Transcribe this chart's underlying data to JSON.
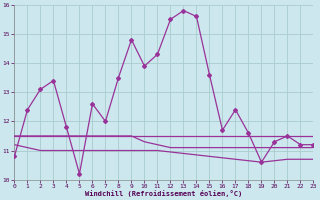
{
  "xlabel": "Windchill (Refroidissement éolien,°C)",
  "background_color": "#cce8ee",
  "grid_color": "#aacccc",
  "line_color": "#993399",
  "x": [
    0,
    1,
    2,
    3,
    4,
    5,
    6,
    7,
    8,
    9,
    10,
    11,
    12,
    13,
    14,
    15,
    16,
    17,
    18,
    19,
    20,
    21,
    22,
    23
  ],
  "y_main": [
    10.8,
    12.4,
    13.1,
    13.4,
    11.8,
    10.2,
    12.6,
    12.0,
    13.5,
    14.8,
    13.9,
    14.3,
    15.5,
    15.8,
    15.6,
    13.6,
    11.7,
    12.4,
    11.6,
    10.6,
    11.3,
    11.5,
    11.2,
    11.2
  ],
  "y_line2": [
    11.5,
    11.5,
    11.5,
    11.5,
    11.5,
    11.5,
    11.5,
    11.5,
    11.5,
    11.5,
    11.5,
    11.5,
    11.5,
    11.5,
    11.5,
    11.5,
    11.5,
    11.5,
    11.5,
    11.5,
    11.5,
    11.5,
    11.5,
    11.5
  ],
  "y_line3": [
    11.5,
    11.5,
    11.5,
    11.5,
    11.5,
    11.5,
    11.5,
    11.5,
    11.5,
    11.5,
    11.3,
    11.2,
    11.1,
    11.1,
    11.1,
    11.1,
    11.1,
    11.1,
    11.1,
    11.1,
    11.1,
    11.1,
    11.1,
    11.1
  ],
  "y_line4": [
    11.2,
    11.1,
    11.0,
    11.0,
    11.0,
    11.0,
    11.0,
    11.0,
    11.0,
    11.0,
    11.0,
    11.0,
    10.95,
    10.9,
    10.85,
    10.8,
    10.75,
    10.7,
    10.65,
    10.6,
    10.65,
    10.7,
    10.7,
    10.7
  ],
  "ylim": [
    10.0,
    16.0
  ],
  "yticks": [
    10,
    11,
    12,
    13,
    14,
    15,
    16
  ],
  "xticks": [
    0,
    1,
    2,
    3,
    4,
    5,
    6,
    7,
    8,
    9,
    10,
    11,
    12,
    13,
    14,
    15,
    16,
    17,
    18,
    19,
    20,
    21,
    22,
    23
  ]
}
